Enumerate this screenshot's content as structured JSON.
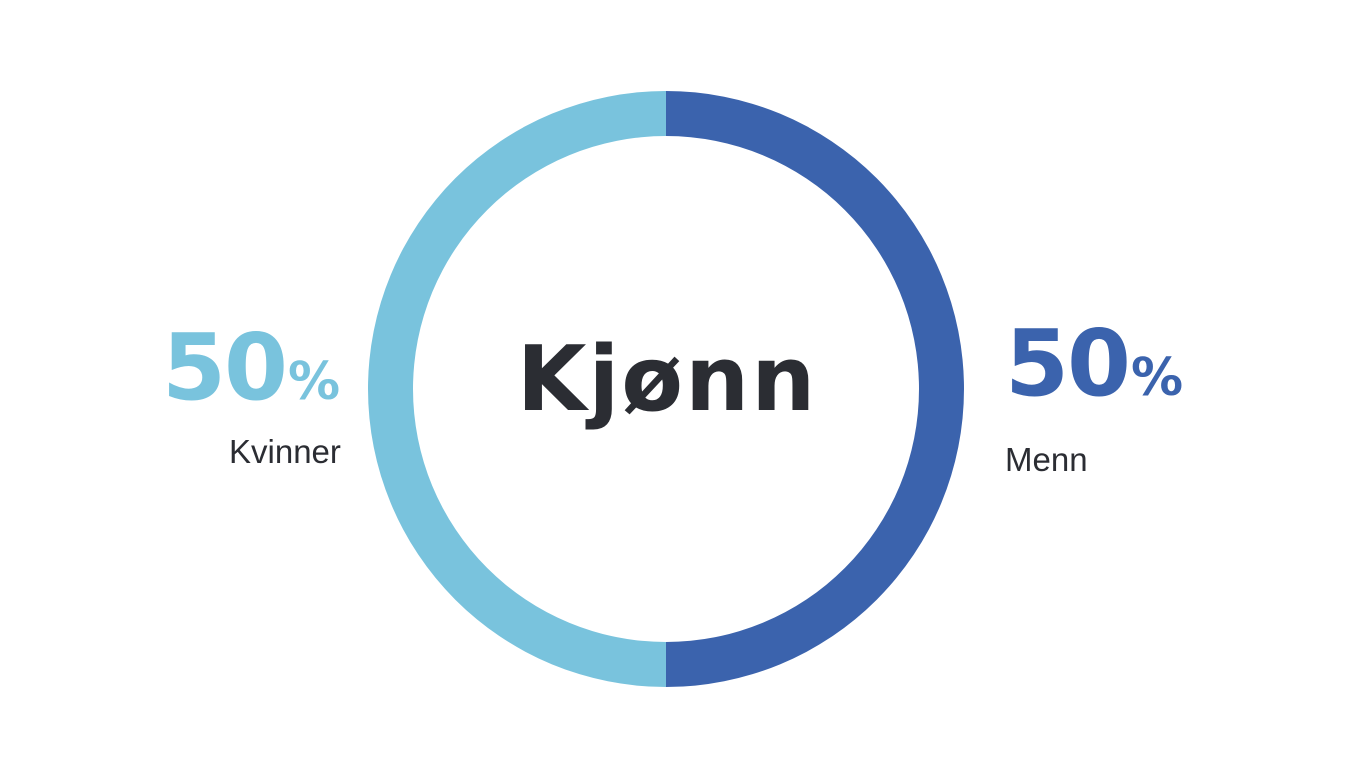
{
  "chart_data": {
    "type": "pie",
    "variant": "donut",
    "center_label": "Kjønn",
    "slices": [
      {
        "label": "Menn",
        "value": 50,
        "value_text": "50",
        "unit": "%",
        "color": "#3b63ad"
      },
      {
        "label": "Kvinner",
        "value": 50,
        "value_text": "50",
        "unit": "%",
        "color": "#79c3dd"
      }
    ]
  }
}
